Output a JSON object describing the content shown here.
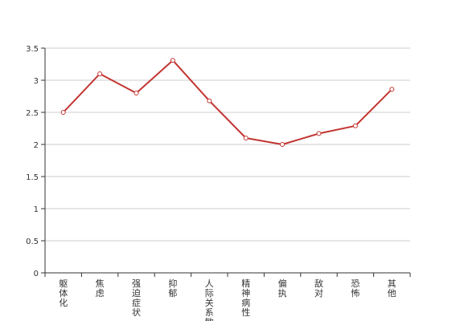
{
  "chart_data": {
    "type": "line",
    "categories": [
      "躯体化",
      "焦虑",
      "强迫症状",
      "抑郁",
      "人际关系敏感",
      "精神病性",
      "偏执",
      "敌对",
      "恐怖",
      "其他"
    ],
    "series": [
      {
        "values": [
          2.5,
          3.1,
          2.8,
          3.31,
          2.68,
          2.1,
          2.0,
          2.17,
          2.29,
          2.86
        ]
      }
    ],
    "ylim": [
      0,
      3.5
    ],
    "yticks": [
      "0",
      "0.5",
      "1",
      "1.5",
      "2",
      "2.5",
      "3",
      "3.5"
    ],
    "grid": true,
    "colors": {
      "line": "#c23531",
      "grid": "#cccccc",
      "axis": "#333333"
    }
  }
}
